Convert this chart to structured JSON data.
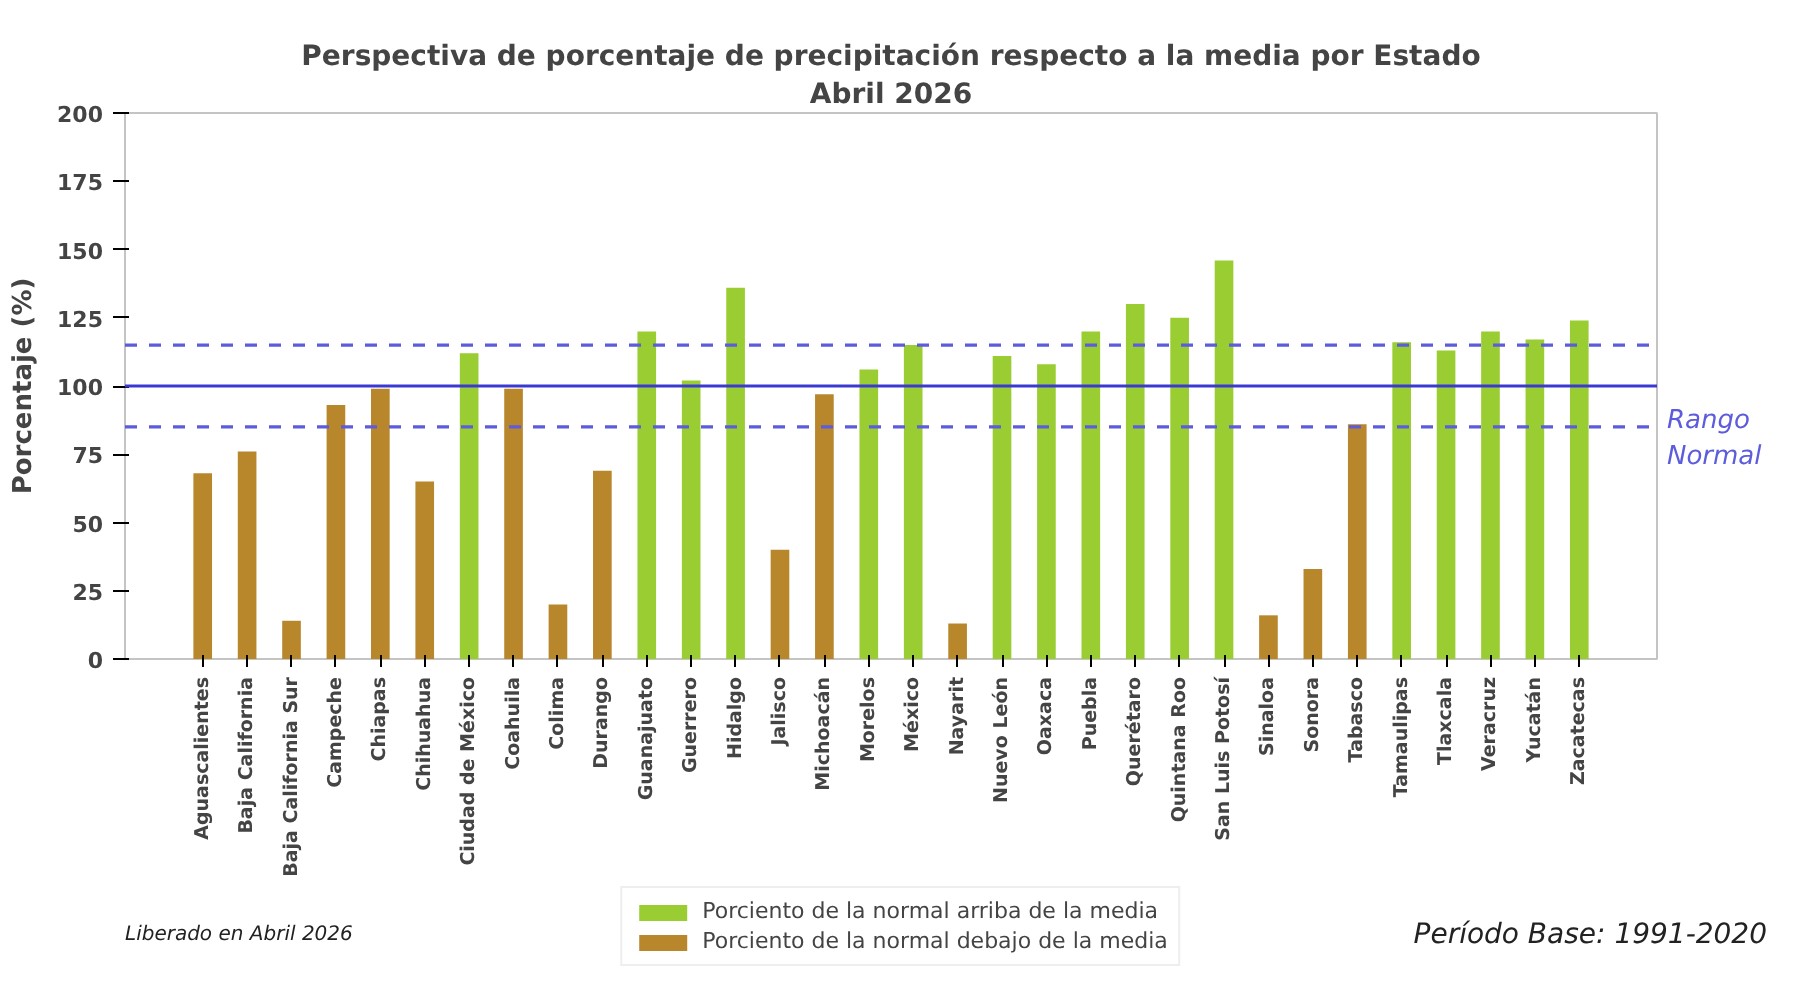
{
  "chart_data": {
    "type": "bar",
    "title": "Perspectiva de porcentaje de precipitación respecto a la media por Estado",
    "subtitle": "Abril 2026",
    "ylabel": "Porcentaje (%)",
    "categories": [
      "Aguascalientes",
      "Baja California",
      "Baja California Sur",
      "Campeche",
      "Chiapas",
      "Chihuahua",
      "Ciudad de México",
      "Coahuila",
      "Colima",
      "Durango",
      "Guanajuato",
      "Guerrero",
      "Hidalgo",
      "Jalisco",
      "Michoacán",
      "Morelos",
      "México",
      "Nayarit",
      "Nuevo León",
      "Oaxaca",
      "Puebla",
      "Querétaro",
      "Quintana Roo",
      "San Luis Potosí",
      "Sinaloa",
      "Sonora",
      "Tabasco",
      "Tamaulipas",
      "Tlaxcala",
      "Veracruz",
      "Yucatán",
      "Zacatecas"
    ],
    "series": [
      {
        "name": "Porciento de la normal arriba de la media",
        "color": "#9acd32",
        "values": [
          null,
          null,
          null,
          null,
          null,
          null,
          112,
          null,
          null,
          null,
          120,
          102,
          136,
          null,
          null,
          106,
          115,
          null,
          111,
          108,
          120,
          130,
          125,
          146,
          null,
          null,
          null,
          116,
          113,
          120,
          117,
          124
        ]
      },
      {
        "name": "Porciento de la normal debajo de la media",
        "color": "#b8862b",
        "values": [
          68,
          76,
          14,
          93,
          99,
          65,
          null,
          99,
          20,
          69,
          null,
          null,
          null,
          40,
          97,
          null,
          null,
          13,
          null,
          null,
          null,
          null,
          null,
          null,
          16,
          33,
          86,
          null,
          null,
          null,
          null,
          null
        ]
      }
    ],
    "ylim": [
      0,
      200
    ],
    "yticks": [
      0,
      25,
      50,
      75,
      100,
      125,
      150,
      175,
      200
    ],
    "ref_lines": [
      {
        "axis": "y",
        "value": 115,
        "line_style": "dashed",
        "color": "#5c5cdc"
      },
      {
        "axis": "y",
        "value": 100,
        "line_style": "solid",
        "color": "#3a3ad2"
      },
      {
        "axis": "y",
        "value": 85,
        "line_style": "dashed",
        "color": "#5c5cdc",
        "label": "Rango Normal"
      }
    ],
    "annotations": [
      "Liberado en Abril 2026",
      "Período Base: 1991-2020"
    ],
    "legend": "bottom"
  }
}
